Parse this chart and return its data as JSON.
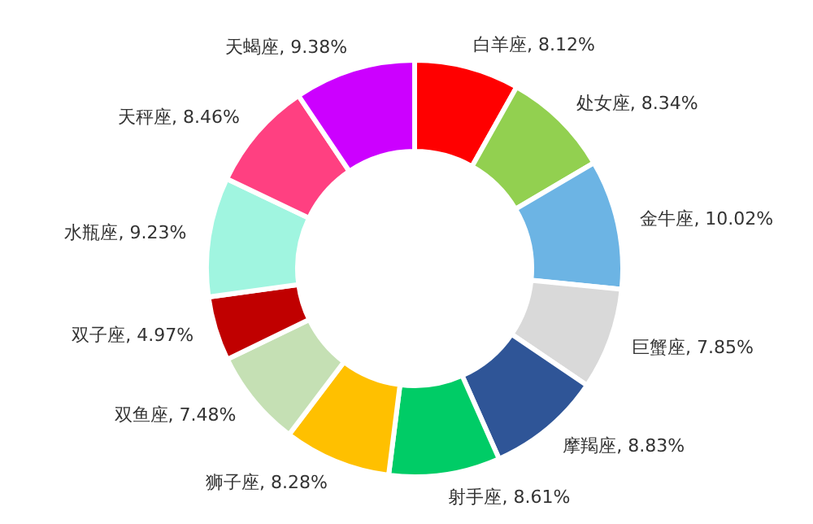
{
  "chart_data": {
    "type": "donut",
    "categories": [
      "白羊座",
      "处女座",
      "金牛座",
      "巨蟹座",
      "摩羯座",
      "射手座",
      "狮子座",
      "双鱼座",
      "双子座",
      "水瓶座",
      "天秤座",
      "天蝎座"
    ],
    "values": [
      8.12,
      8.34,
      10.02,
      7.85,
      8.83,
      8.61,
      8.28,
      7.48,
      4.97,
      9.23,
      8.46,
      9.38
    ],
    "value_labels": [
      "8.12%",
      "8.34%",
      "10.02%",
      "7.85%",
      "8.83%",
      "8.61%",
      "8.28%",
      "7.48%",
      "4.97%",
      "9.23%",
      "8.46%",
      "9.38%"
    ],
    "colors": [
      "#ff0000",
      "#92d050",
      "#6cb4e4",
      "#d9d9d9",
      "#2f5597",
      "#00cc66",
      "#ffc000",
      "#c5e0b4",
      "#c00000",
      "#a0f5e0",
      "#ff4081",
      "#cc00ff"
    ],
    "legend": false
  }
}
